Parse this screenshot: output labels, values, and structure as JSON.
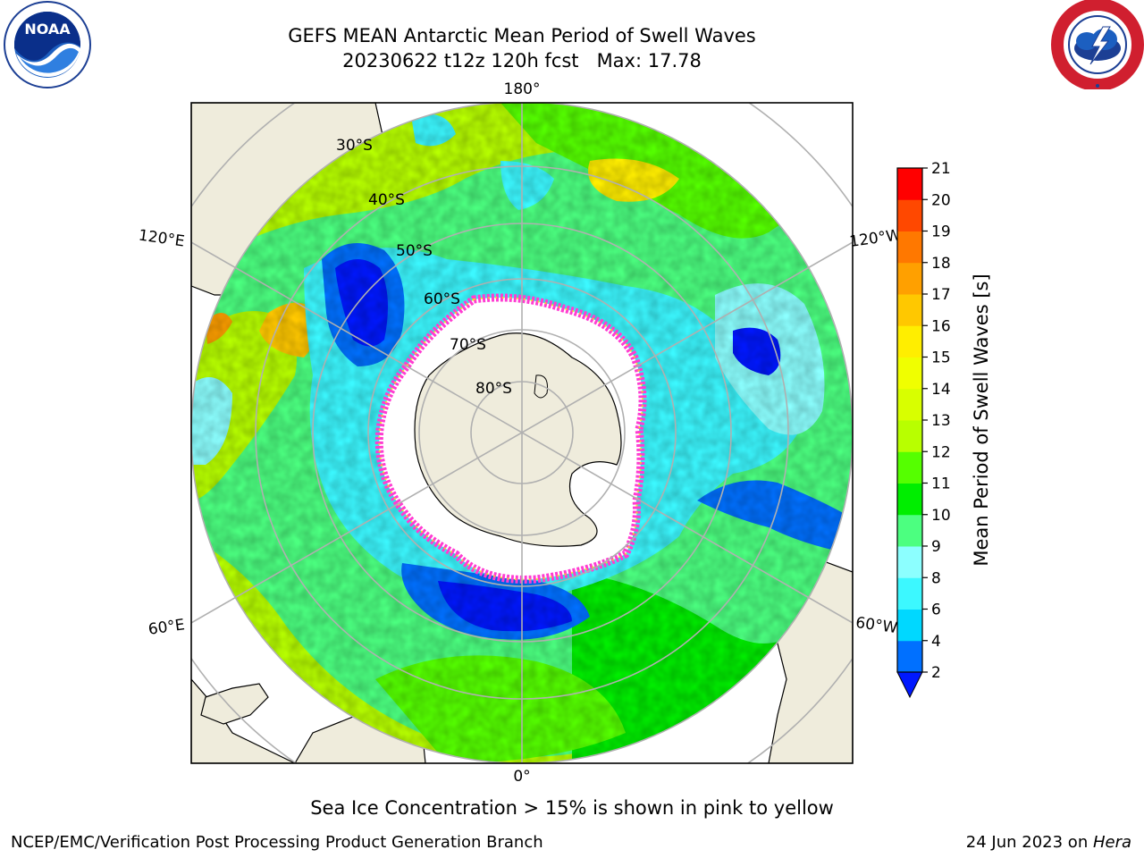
{
  "title": {
    "line1": "GEFS MEAN Antarctic Mean Period of Swell Waves",
    "line2": "20230622 t12z 120h fcst   Max: 17.78"
  },
  "map": {
    "projection": "south-polar-stereographic",
    "longitude_labels": {
      "top": "180°",
      "bottom": "0°",
      "upper_left": "120°E",
      "upper_right": "120°W",
      "lower_left": "60°E",
      "lower_right": "60°W"
    },
    "latitude_labels": [
      "30°S",
      "40°S",
      "50°S",
      "60°S",
      "70°S",
      "80°S"
    ],
    "colors": {
      "land": "#efecdc",
      "coast": "#000000",
      "grid": "#b0b0b0",
      "ice": "#ffffff",
      "ice_edge": "#ff3cd2"
    }
  },
  "colorbar": {
    "label": "Mean Period of Swell Waves [s]",
    "ticks": [
      "2",
      "4",
      "6",
      "8",
      "9",
      "10",
      "11",
      "12",
      "13",
      "14",
      "15",
      "16",
      "17",
      "18",
      "19",
      "20",
      "21"
    ],
    "colors": [
      "#0070ff",
      "#00d8ff",
      "#3cf8ff",
      "#8cffff",
      "#4cff80",
      "#00ee00",
      "#55ff00",
      "#b8ff00",
      "#d8ff00",
      "#f0ff00",
      "#ffee00",
      "#ffc800",
      "#ffa000",
      "#ff7800",
      "#ff4800",
      "#ff0000"
    ],
    "extend_min_color": "#0018ff"
  },
  "caption": "Sea Ice Concentration > 15% is shown in pink to yellow",
  "footer": {
    "left": "NCEP/EMC/Verification Post Processing Product Generation Branch",
    "right_date": "24 Jun 2023 on ",
    "right_machine": "Hera"
  },
  "logos": {
    "left_text": "NOAA",
    "right_text": "NATIONAL WEATHER SERVICE"
  }
}
